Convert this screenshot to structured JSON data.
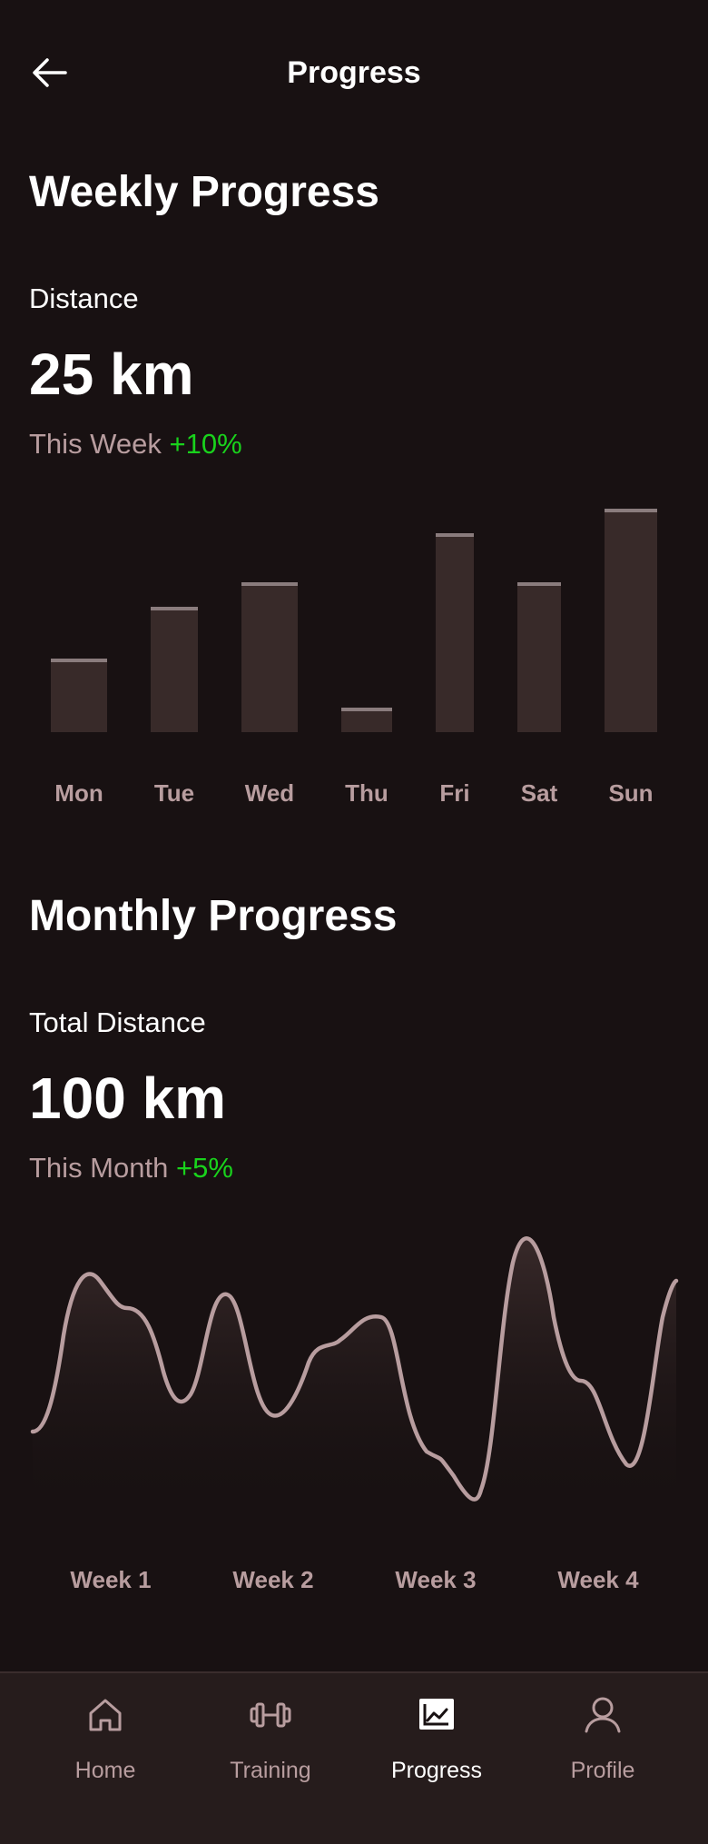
{
  "header": {
    "title": "Progress",
    "back_icon": "arrow-left-icon"
  },
  "weekly": {
    "title": "Weekly Progress",
    "metric_label": "Distance",
    "metric_value": "25 km",
    "period_label": "This Week",
    "delta": "+10%",
    "delta_color": "#19d21c"
  },
  "weekly_chart": {
    "type": "bar",
    "categories": [
      "Mon",
      "Tue",
      "Wed",
      "Thu",
      "Fri",
      "Sat",
      "Sun"
    ],
    "values": [
      33,
      56,
      67,
      11,
      89,
      67,
      100
    ],
    "ylim": [
      0,
      100
    ],
    "grid": false,
    "bar_color": "#382a29"
  },
  "monthly": {
    "title": "Monthly Progress",
    "metric_label": "Total Distance",
    "metric_value": "100 km",
    "period_label": "This Month",
    "delta": "+5%",
    "delta_color": "#19d21c"
  },
  "monthly_chart": {
    "type": "area",
    "categories": [
      "Week 1",
      "Week 2",
      "Week 3",
      "Week 4"
    ],
    "ylim": [
      0,
      100
    ],
    "grid": false,
    "line_color": "#b89d9f"
  },
  "nav": {
    "items": [
      {
        "label": "Home",
        "icon": "home-icon",
        "active": false
      },
      {
        "label": "Training",
        "icon": "dumbbell-icon",
        "active": false
      },
      {
        "label": "Progress",
        "icon": "chart-icon",
        "active": true
      },
      {
        "label": "Profile",
        "icon": "user-icon",
        "active": false
      }
    ]
  }
}
